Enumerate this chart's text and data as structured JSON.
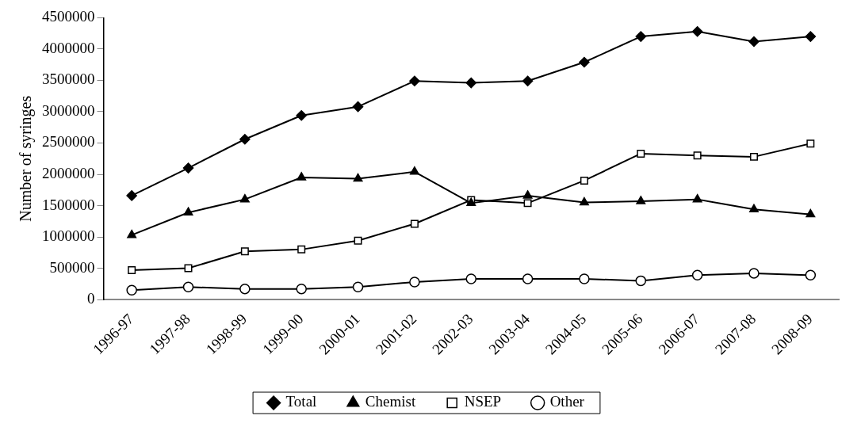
{
  "chart_data": {
    "type": "line",
    "ylabel": "Number of syringes",
    "categories": [
      "1996-97",
      "1997-98",
      "1998-99",
      "1999-00",
      "2000-01",
      "2001-02",
      "2002-03",
      "2003-04",
      "2004-05",
      "2005-06",
      "2006-07",
      "2007-08",
      "2008-09"
    ],
    "series": [
      {
        "name": "Total",
        "color": "#000000",
        "marker": "diamond",
        "values": [
          1660000,
          2100000,
          2560000,
          2940000,
          3080000,
          3490000,
          3460000,
          3490000,
          3790000,
          4200000,
          4280000,
          4120000,
          4200000
        ]
      },
      {
        "name": "Chemist",
        "color": "#000000",
        "marker": "triangle",
        "values": [
          1030000,
          1390000,
          1600000,
          1950000,
          1930000,
          2040000,
          1540000,
          1660000,
          1550000,
          1570000,
          1600000,
          1440000,
          1360000
        ]
      },
      {
        "name": "NSEP",
        "color": "#000000",
        "marker": "square",
        "values": [
          470000,
          500000,
          770000,
          800000,
          940000,
          1210000,
          1590000,
          1540000,
          1900000,
          2330000,
          2300000,
          2280000,
          2490000
        ]
      },
      {
        "name": "Other",
        "color": "#000000",
        "marker": "circle",
        "values": [
          150000,
          200000,
          170000,
          170000,
          200000,
          280000,
          330000,
          330000,
          330000,
          300000,
          390000,
          420000,
          390000
        ]
      }
    ],
    "ylim": [
      0,
      4500000
    ],
    "yticks": [
      0,
      500000,
      1000000,
      1500000,
      2000000,
      2500000,
      3000000,
      3500000,
      4000000,
      4500000
    ],
    "grid": false,
    "legend": "bottom"
  }
}
